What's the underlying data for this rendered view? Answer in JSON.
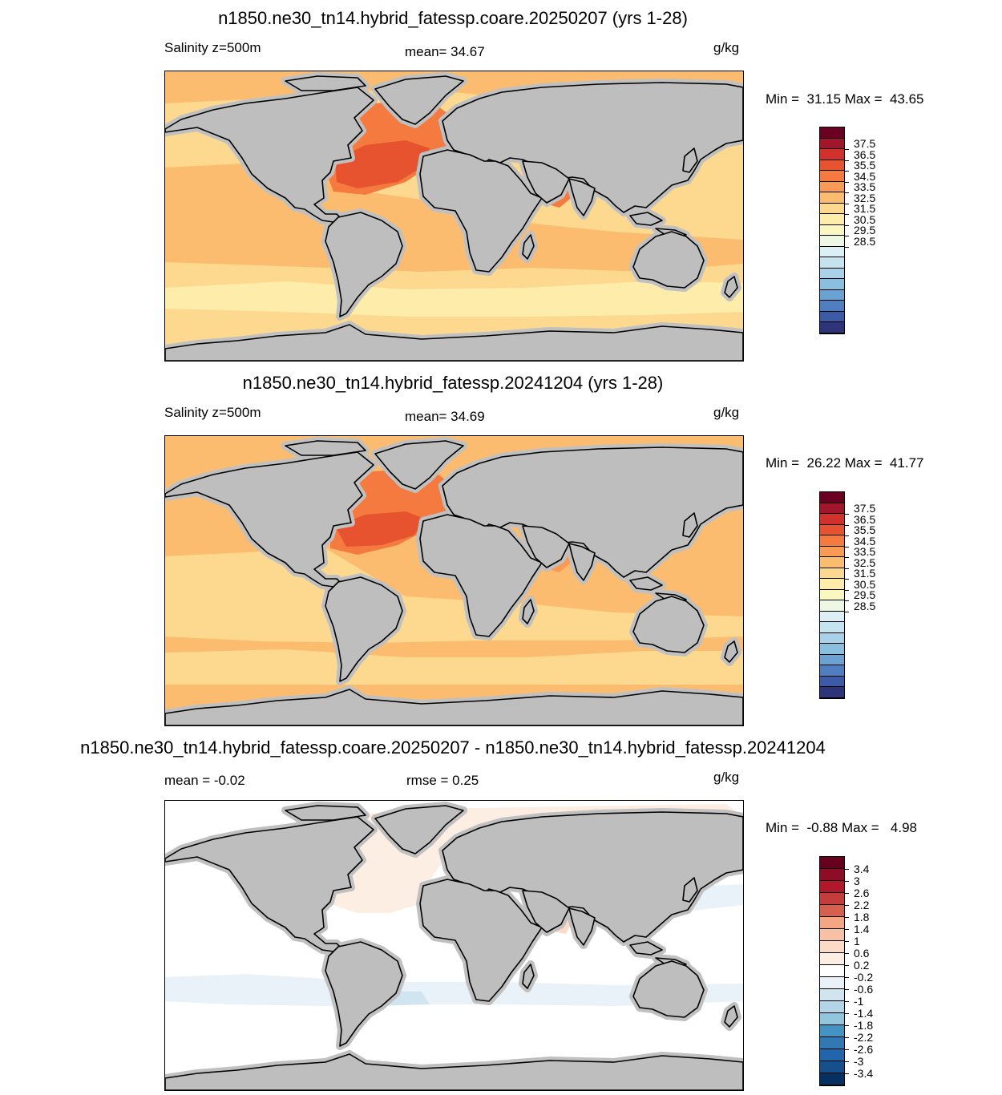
{
  "panels": [
    {
      "title": "n1850.ne30_tn14.hybrid_fatessp.coare.20250207 (yrs 1-28)",
      "left_label": "Salinity z=500m",
      "center_label": "mean=  34.67",
      "units": "g/kg",
      "minmax": "Min =  31.15 Max =  43.65",
      "style": "abs"
    },
    {
      "title": "n1850.ne30_tn14.hybrid_fatessp.20241204 (yrs 1-28)",
      "left_label": "Salinity z=500m",
      "center_label": "mean=  34.69",
      "units": "g/kg",
      "minmax": "Min =  26.22 Max =  41.77",
      "style": "abs"
    },
    {
      "title": "n1850.ne30_tn14.hybrid_fatessp.coare.20250207 - n1850.ne30_tn14.hybrid_fatessp.20241204",
      "left_label": "mean =  -0.02",
      "center_label": "rmse =   0.25",
      "units": "g/kg",
      "minmax": "Min =  -0.88 Max =   4.98",
      "style": "diff"
    }
  ],
  "colorbar_abs": {
    "labels": [
      "37.5",
      "36.5",
      "35.5",
      "34.5",
      "33.5",
      "32.5",
      "31.5",
      "30.5",
      "29.5",
      "28.5"
    ],
    "colors": [
      "#6b0022",
      "#a3152a",
      "#d1312b",
      "#e6532e",
      "#f47a3f",
      "#f99b55",
      "#fbbc6f",
      "#fdd98f",
      "#fdecaa",
      "#fbf7c0",
      "#eef7e4",
      "#dceff5",
      "#c5e4f0",
      "#a9d2e8",
      "#8abfe0",
      "#6aa2d1",
      "#4f7fc0",
      "#3d5aa6",
      "#2e3479"
    ]
  },
  "colorbar_diff": {
    "labels": [
      "3.4",
      "3",
      "2.6",
      "2.2",
      "1.8",
      "1.4",
      "1",
      "0.6",
      "0.2",
      "-0.2",
      "-0.6",
      "-1",
      "-1.4",
      "-1.8",
      "-2.2",
      "-2.6",
      "-3",
      "-3.4"
    ],
    "colors": [
      "#67001f",
      "#8c0d25",
      "#b2182b",
      "#c43c3c",
      "#d6604d",
      "#e58267",
      "#f4a582",
      "#f8c1a5",
      "#fbdac7",
      "#fdeee4",
      "#ffffff",
      "#e9f2f8",
      "#d1e5f0",
      "#b4d5e8",
      "#92c5de",
      "#6aa9cf",
      "#4393c3",
      "#3279b4",
      "#2166ac",
      "#15508a",
      "#053061"
    ]
  }
}
